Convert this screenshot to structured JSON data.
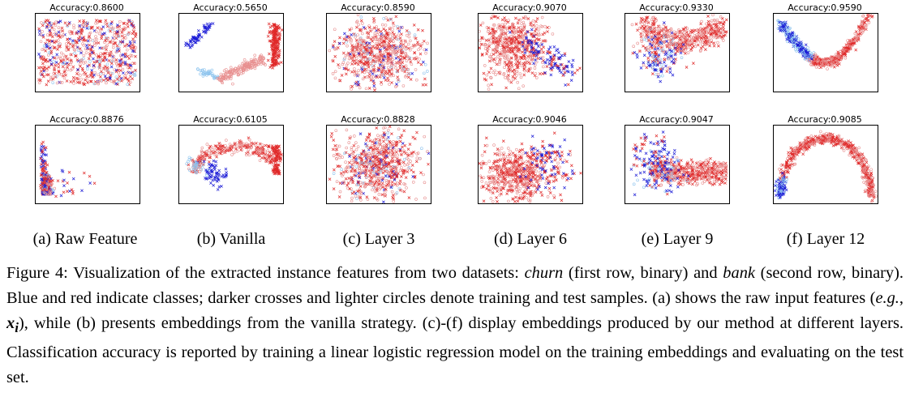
{
  "figure": {
    "rows": [
      {
        "dataset": "churn",
        "panels": [
          {
            "id": "a",
            "accuracy_text": "Accuracy:0.8600",
            "style": "raw"
          },
          {
            "id": "b",
            "accuracy_text": "Accuracy:0.5650",
            "style": "vanilla"
          },
          {
            "id": "c",
            "accuracy_text": "Accuracy:0.8590",
            "style": "blob"
          },
          {
            "id": "d",
            "accuracy_text": "Accuracy:0.9070",
            "style": "cloud"
          },
          {
            "id": "e",
            "accuracy_text": "Accuracy:0.9330",
            "style": "wing"
          },
          {
            "id": "f",
            "accuracy_text": "Accuracy:0.9590",
            "style": "crescent"
          }
        ]
      },
      {
        "dataset": "bank",
        "panels": [
          {
            "id": "a",
            "accuracy_text": "Accuracy:0.8876",
            "style": "corner"
          },
          {
            "id": "b",
            "accuracy_text": "Accuracy:0.6105",
            "style": "vanilla2"
          },
          {
            "id": "c",
            "accuracy_text": "Accuracy:0.8828",
            "style": "blob"
          },
          {
            "id": "d",
            "accuracy_text": "Accuracy:0.9046",
            "style": "cloud2"
          },
          {
            "id": "e",
            "accuracy_text": "Accuracy:0.9047",
            "style": "arrow"
          },
          {
            "id": "f",
            "accuracy_text": "Accuracy:0.9085",
            "style": "arch"
          }
        ]
      }
    ],
    "subcaptions": [
      "(a) Raw Feature",
      "(b) Vanilla",
      "(c) Layer 3",
      "(d) Layer 6",
      "(e) Layer 9",
      "(f) Layer 12"
    ],
    "legend_colors": {
      "class0_train": "#1a1ad6",
      "class0_test": "#8ec4ee",
      "class1_train": "#e02a2a",
      "class1_test": "#e89090"
    }
  },
  "caption": {
    "label": "Figure 4:",
    "part1": " Visualization of the extracted instance features from two datasets: ",
    "dataset1": "churn",
    "part2": " (first row, binary) and ",
    "dataset2": "bank",
    "part3": " (second row, binary). Blue and red indicate classes; darker crosses and lighter circles denote training and test samples. (a) shows the raw input features (",
    "eg": "e.g.",
    "part4": ", ",
    "math": "x",
    "math_sub": "i",
    "part5": "), while (b) presents embeddings from the vanilla strategy. (c)-(f) display embeddings produced by our method at different layers. Classification accuracy is reported by training a linear logistic regression model on the training embeddings and evaluating on the test set."
  }
}
